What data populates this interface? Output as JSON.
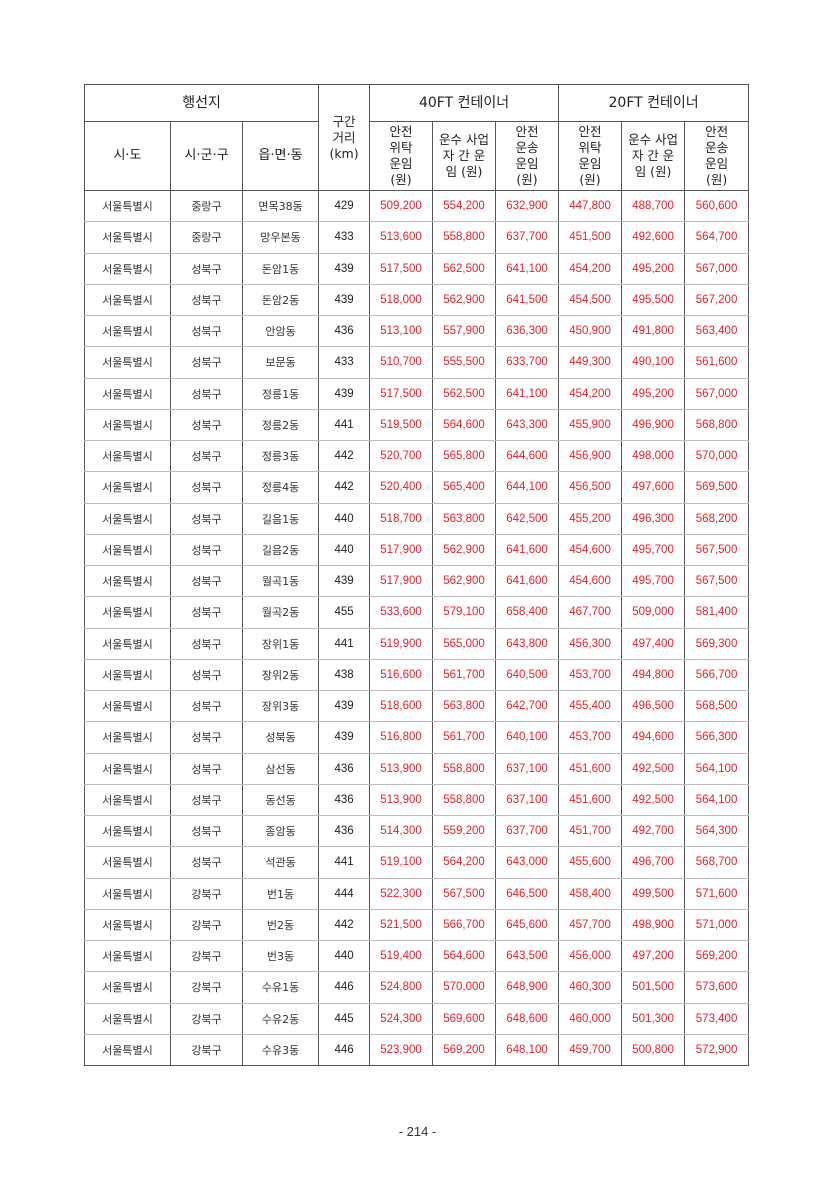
{
  "header": {
    "region": "행선지",
    "sido": "시·도",
    "sigungu": "시·군·구",
    "eupmyeondong": "읍·면·동",
    "distance": "구간 거리 (km)",
    "ft40": "40FT 컨테이너",
    "ft20": "20FT 컨테이너",
    "col_safe_consign": "안전 위탁 운임 (원)",
    "col_carrier": "운수 사업자 간 운임 (원)",
    "col_safe_transport": "안전 운송 운임 (원)"
  },
  "colors": {
    "value_text": "#e8202a"
  },
  "rows": [
    [
      "서울특별시",
      "중랑구",
      "면목38동",
      "429",
      "509,200",
      "554,200",
      "632,900",
      "447,800",
      "488,700",
      "560,600"
    ],
    [
      "서울특별시",
      "중랑구",
      "망우본동",
      "433",
      "513,600",
      "558,800",
      "637,700",
      "451,500",
      "492,600",
      "564,700"
    ],
    [
      "서울특별시",
      "성북구",
      "돈암1동",
      "439",
      "517,500",
      "562,500",
      "641,100",
      "454,200",
      "495,200",
      "567,000"
    ],
    [
      "서울특별시",
      "성북구",
      "돈암2동",
      "439",
      "518,000",
      "562,900",
      "641,500",
      "454,500",
      "495,500",
      "567,200"
    ],
    [
      "서울특별시",
      "성북구",
      "안암동",
      "436",
      "513,100",
      "557,900",
      "636,300",
      "450,900",
      "491,800",
      "563,400"
    ],
    [
      "서울특별시",
      "성북구",
      "보문동",
      "433",
      "510,700",
      "555,500",
      "633,700",
      "449,300",
      "490,100",
      "561,600"
    ],
    [
      "서울특별시",
      "성북구",
      "정릉1동",
      "439",
      "517,500",
      "562,500",
      "641,100",
      "454,200",
      "495,200",
      "567,000"
    ],
    [
      "서울특별시",
      "성북구",
      "정릉2동",
      "441",
      "519,500",
      "564,600",
      "643,300",
      "455,900",
      "496,900",
      "568,800"
    ],
    [
      "서울특별시",
      "성북구",
      "정릉3동",
      "442",
      "520,700",
      "565,800",
      "644,600",
      "456,900",
      "498,000",
      "570,000"
    ],
    [
      "서울특별시",
      "성북구",
      "정릉4동",
      "442",
      "520,400",
      "565,400",
      "644,100",
      "456,500",
      "497,600",
      "569,500"
    ],
    [
      "서울특별시",
      "성북구",
      "길음1동",
      "440",
      "518,700",
      "563,800",
      "642,500",
      "455,200",
      "496,300",
      "568,200"
    ],
    [
      "서울특별시",
      "성북구",
      "길음2동",
      "440",
      "517,900",
      "562,900",
      "641,600",
      "454,600",
      "495,700",
      "567,500"
    ],
    [
      "서울특별시",
      "성북구",
      "월곡1동",
      "439",
      "517,900",
      "562,900",
      "641,600",
      "454,600",
      "495,700",
      "567,500"
    ],
    [
      "서울특별시",
      "성북구",
      "월곡2동",
      "455",
      "533,600",
      "579,100",
      "658,400",
      "467,700",
      "509,000",
      "581,400"
    ],
    [
      "서울특별시",
      "성북구",
      "장위1동",
      "441",
      "519,900",
      "565,000",
      "643,800",
      "456,300",
      "497,400",
      "569,300"
    ],
    [
      "서울특별시",
      "성북구",
      "장위2동",
      "438",
      "516,600",
      "561,700",
      "640,500",
      "453,700",
      "494,800",
      "566,700"
    ],
    [
      "서울특별시",
      "성북구",
      "장위3동",
      "439",
      "518,600",
      "563,800",
      "642,700",
      "455,400",
      "496,500",
      "568,500"
    ],
    [
      "서울특별시",
      "성북구",
      "성북동",
      "439",
      "516,800",
      "561,700",
      "640,100",
      "453,700",
      "494,600",
      "566,300"
    ],
    [
      "서울특별시",
      "성북구",
      "삼선동",
      "436",
      "513,900",
      "558,800",
      "637,100",
      "451,600",
      "492,500",
      "564,100"
    ],
    [
      "서울특별시",
      "성북구",
      "동선동",
      "436",
      "513,900",
      "558,800",
      "637,100",
      "451,600",
      "492,500",
      "564,100"
    ],
    [
      "서울특별시",
      "성북구",
      "종암동",
      "436",
      "514,300",
      "559,200",
      "637,700",
      "451,700",
      "492,700",
      "564,300"
    ],
    [
      "서울특별시",
      "성북구",
      "석관동",
      "441",
      "519,100",
      "564,200",
      "643,000",
      "455,600",
      "496,700",
      "568,700"
    ],
    [
      "서울특별시",
      "강북구",
      "번1동",
      "444",
      "522,300",
      "567,500",
      "646,500",
      "458,400",
      "499,500",
      "571,600"
    ],
    [
      "서울특별시",
      "강북구",
      "번2동",
      "442",
      "521,500",
      "566,700",
      "645,600",
      "457,700",
      "498,900",
      "571,000"
    ],
    [
      "서울특별시",
      "강북구",
      "번3동",
      "440",
      "519,400",
      "564,600",
      "643,500",
      "456,000",
      "497,200",
      "569,200"
    ],
    [
      "서울특별시",
      "강북구",
      "수유1동",
      "446",
      "524,800",
      "570,000",
      "648,900",
      "460,300",
      "501,500",
      "573,600"
    ],
    [
      "서울특별시",
      "강북구",
      "수유2동",
      "445",
      "524,300",
      "569,600",
      "648,600",
      "460,000",
      "501,300",
      "573,400"
    ],
    [
      "서울특별시",
      "강북구",
      "수유3동",
      "446",
      "523,900",
      "569,200",
      "648,100",
      "459,700",
      "500,800",
      "572,900"
    ]
  ],
  "page_number": "- 214 -"
}
